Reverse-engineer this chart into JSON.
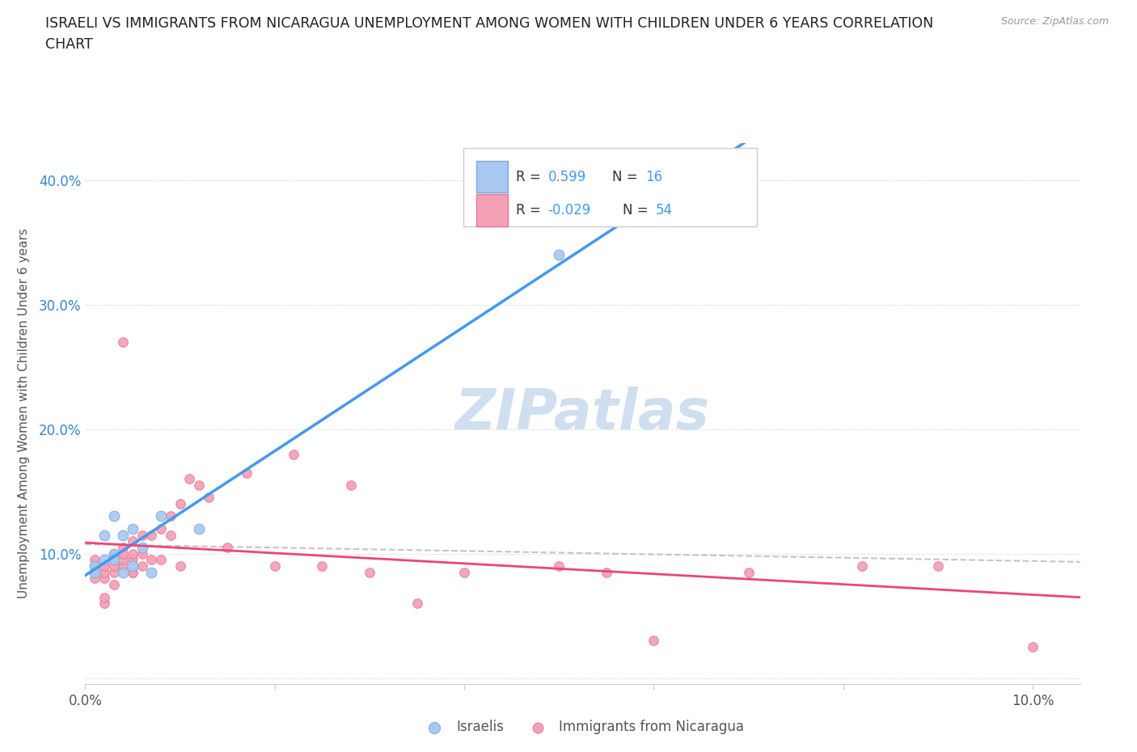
{
  "title_line1": "ISRAELI VS IMMIGRANTS FROM NICARAGUA UNEMPLOYMENT AMONG WOMEN WITH CHILDREN UNDER 6 YEARS CORRELATION",
  "title_line2": "CHART",
  "source": "Source: ZipAtlas.com",
  "ylabel": "Unemployment Among Women with Children Under 6 years",
  "xlim": [
    0.0,
    0.105
  ],
  "ylim": [
    -0.005,
    0.43
  ],
  "xtick_vals": [
    0.0,
    0.02,
    0.04,
    0.06,
    0.08,
    0.1
  ],
  "xtick_labels": [
    "0.0%",
    "",
    "",
    "",
    "",
    "10.0%"
  ],
  "ytick_vals": [
    0.0,
    0.1,
    0.2,
    0.3,
    0.4
  ],
  "ytick_labels": [
    "",
    "10.0%",
    "20.0%",
    "30.0%",
    "40.0%"
  ],
  "israeli_R": 0.599,
  "israeli_N": 16,
  "nicaragua_R": -0.029,
  "nicaragua_N": 54,
  "israeli_color": "#a8c8f0",
  "israeli_edge": "#7aabdd",
  "nicaragua_color": "#f4a0b5",
  "nicaragua_edge": "#e07898",
  "trend_blue": "#4499ee",
  "trend_pink": "#ee4477",
  "trend_gray": "#bbbbbb",
  "watermark_color": "#d0dff0",
  "bg": "#ffffff",
  "israelis_x": [
    0.001,
    0.001,
    0.002,
    0.002,
    0.003,
    0.003,
    0.003,
    0.004,
    0.004,
    0.005,
    0.005,
    0.006,
    0.007,
    0.008,
    0.012,
    0.05
  ],
  "israelis_y": [
    0.09,
    0.085,
    0.095,
    0.115,
    0.1,
    0.095,
    0.13,
    0.085,
    0.115,
    0.09,
    0.12,
    0.105,
    0.085,
    0.13,
    0.12,
    0.34
  ],
  "nicaragua_x": [
    0.001,
    0.001,
    0.001,
    0.001,
    0.002,
    0.002,
    0.002,
    0.002,
    0.002,
    0.003,
    0.003,
    0.003,
    0.003,
    0.003,
    0.004,
    0.004,
    0.004,
    0.004,
    0.004,
    0.005,
    0.005,
    0.005,
    0.005,
    0.005,
    0.006,
    0.006,
    0.006,
    0.007,
    0.007,
    0.008,
    0.008,
    0.009,
    0.009,
    0.01,
    0.01,
    0.011,
    0.012,
    0.013,
    0.015,
    0.017,
    0.02,
    0.022,
    0.025,
    0.028,
    0.03,
    0.035,
    0.04,
    0.05,
    0.055,
    0.06,
    0.07,
    0.082,
    0.09,
    0.1
  ],
  "nicaragua_y": [
    0.09,
    0.085,
    0.08,
    0.095,
    0.06,
    0.08,
    0.085,
    0.09,
    0.065,
    0.085,
    0.075,
    0.09,
    0.095,
    0.1,
    0.09,
    0.095,
    0.105,
    0.1,
    0.27,
    0.085,
    0.095,
    0.1,
    0.11,
    0.085,
    0.115,
    0.09,
    0.1,
    0.095,
    0.115,
    0.095,
    0.12,
    0.13,
    0.115,
    0.14,
    0.09,
    0.16,
    0.155,
    0.145,
    0.105,
    0.165,
    0.09,
    0.18,
    0.09,
    0.155,
    0.085,
    0.06,
    0.085,
    0.09,
    0.085,
    0.03,
    0.085,
    0.09,
    0.09,
    0.025
  ]
}
